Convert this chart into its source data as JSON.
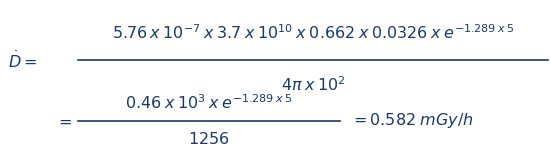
{
  "line1": "$\\dot{D} = \\dfrac{5.76 \\times 10^{-7} \\times 3.7 \\times 10^{10} \\times 0.662 \\times 0.0326 \\times e^{-1.289 \\times 5}}{4\\pi \\times 10^{2}}$",
  "line2": "$= \\dfrac{0.46 \\times 10^{3} \\times e^{-1.289 \\times 5}}{1256} = 0.582 \\; mGy/h$",
  "line1_lhs": "$\\dot{D} =$",
  "line1_num": "$5.76 \\: x \\: 10^{-7} \\: x \\: 3.7 \\: x \\: 10^{10} \\: x \\: 0.662 \\: x \\: 0.0326 \\: x \\: e^{-1.289 \\: x \\: 5}$",
  "line1_den": "$4\\pi \\: x \\: 10^{2}$",
  "line2_eq": "$=$",
  "line2_num": "$0.46 \\: x \\: 10^{3} \\: x \\: e^{-1.289 \\: x \\: 5}$",
  "line2_den": "$1256$",
  "line2_result": "$= 0.582 \\; mGy/h$",
  "bg_color": "#ffffff",
  "text_color": "#1a3a6e",
  "fontsize": 11.5
}
